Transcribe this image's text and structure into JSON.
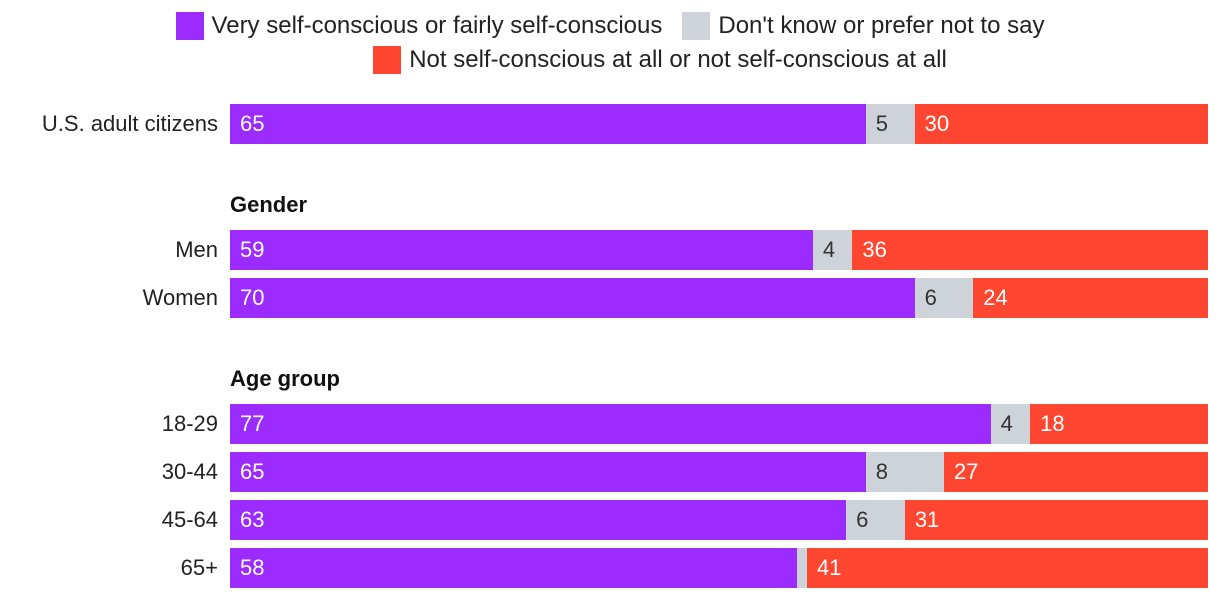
{
  "chart_data": {
    "type": "bar",
    "orientation": "horizontal",
    "stacked": true,
    "legend": [
      {
        "name": "Very self-conscious or fairly self-conscious",
        "color": "#9b2bff"
      },
      {
        "name": "Don't know or prefer not to say",
        "color": "#ced2d9"
      },
      {
        "name": "Not self-conscious at all or not self-conscious at all",
        "color": "#ff4630"
      }
    ],
    "groups": [
      {
        "title": "",
        "rows": [
          {
            "label": "U.S. adult citizens",
            "values": [
              65,
              5,
              30
            ]
          }
        ]
      },
      {
        "title": "Gender",
        "rows": [
          {
            "label": "Men",
            "values": [
              59,
              4,
              36
            ]
          },
          {
            "label": "Women",
            "values": [
              70,
              6,
              24
            ]
          }
        ]
      },
      {
        "title": "Age group",
        "rows": [
          {
            "label": "18-29",
            "values": [
              77,
              4,
              18
            ]
          },
          {
            "label": "30-44",
            "values": [
              65,
              8,
              27
            ]
          },
          {
            "label": "45-64",
            "values": [
              63,
              6,
              31
            ]
          },
          {
            "label": "65+",
            "values": [
              58,
              1,
              41
            ]
          }
        ]
      }
    ],
    "hidden_labels": [
      {
        "group": 2,
        "row": 3,
        "segment": 1
      }
    ],
    "label_text_colors": [
      "#ffffff",
      "#333333",
      "#ffffff"
    ],
    "xlim": [
      0,
      100
    ]
  }
}
